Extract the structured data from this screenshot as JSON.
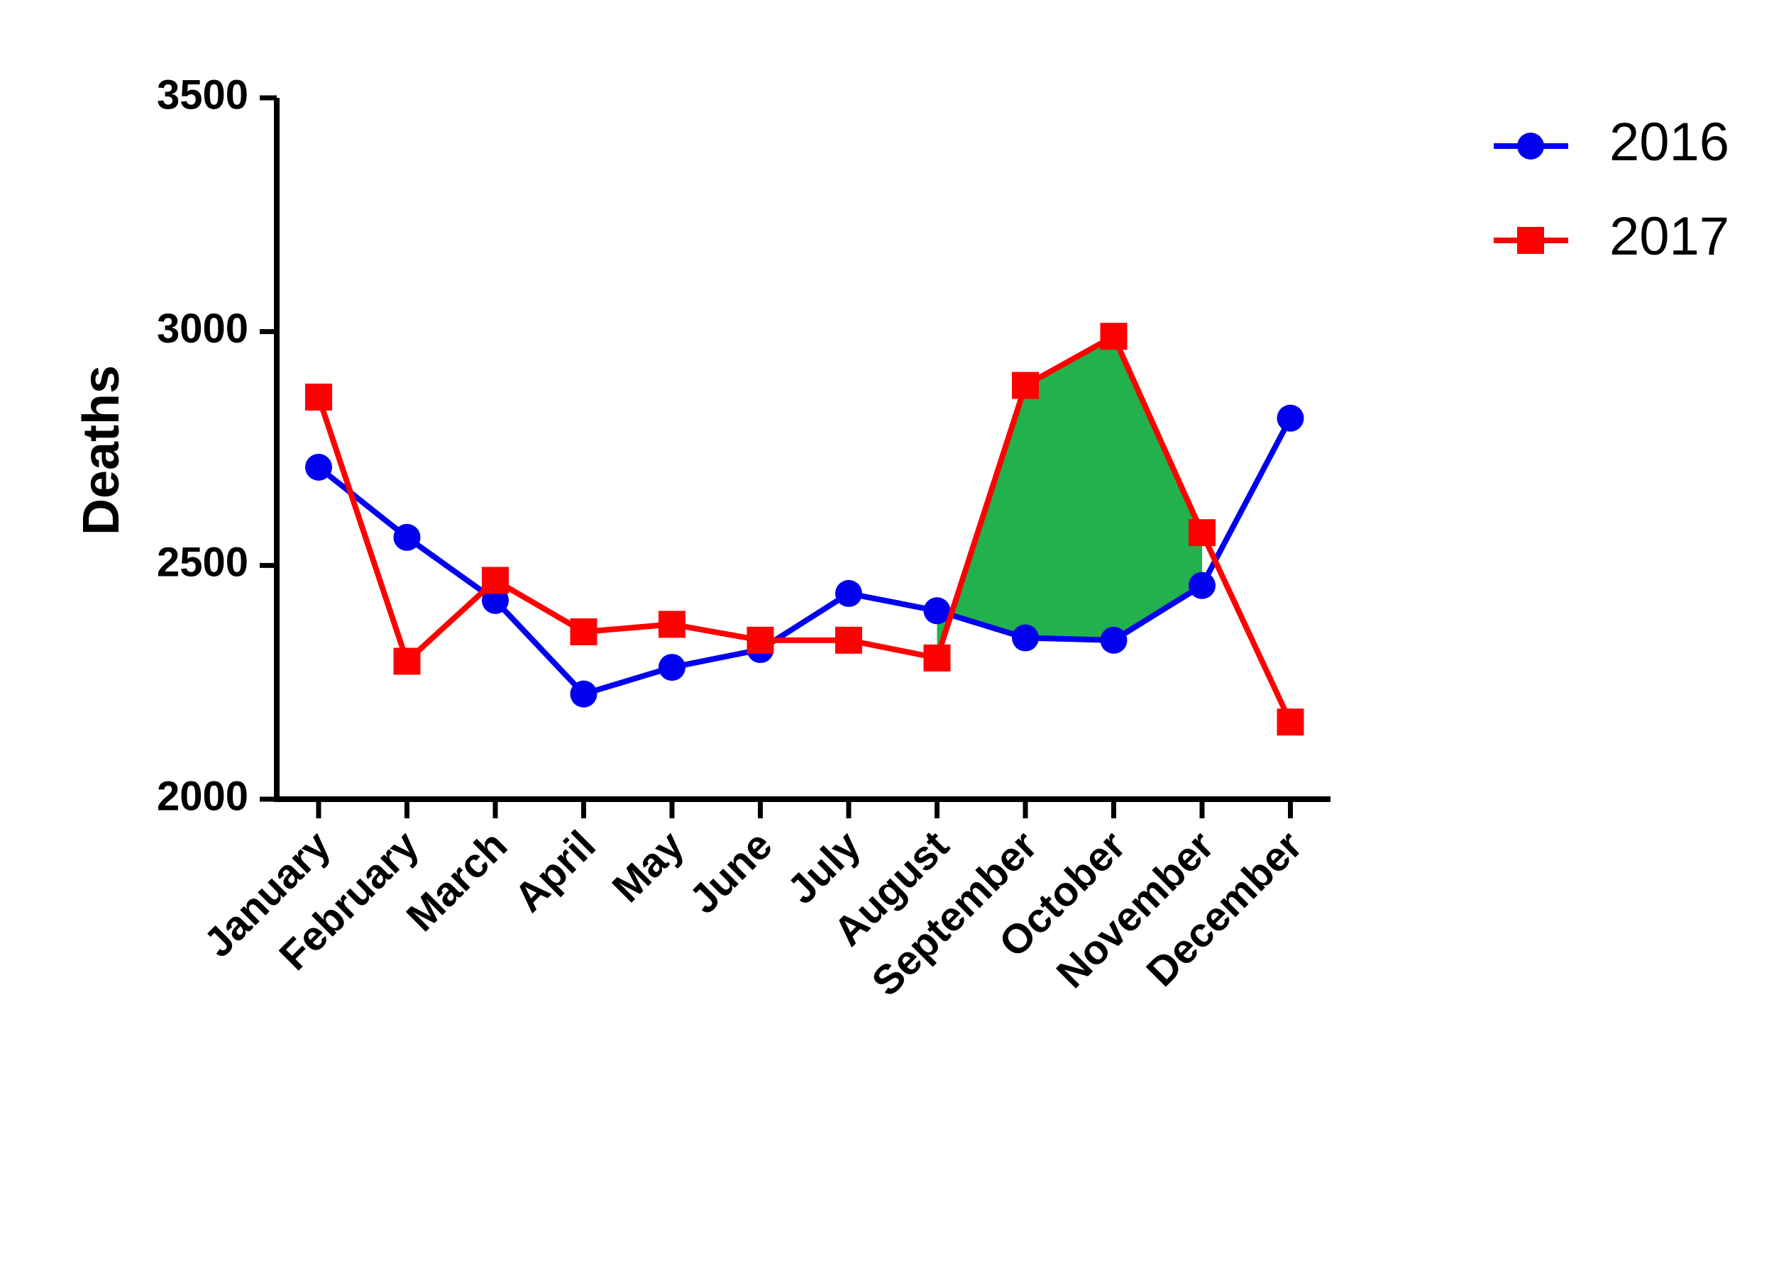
{
  "chart_data": {
    "type": "line",
    "title": "",
    "xlabel": "",
    "ylabel": "Deaths",
    "ylim": [
      2000,
      3500
    ],
    "yticks": [
      2000,
      2500,
      3000,
      3500
    ],
    "categories": [
      "January",
      "February",
      "March",
      "April",
      "May",
      "June",
      "July",
      "August",
      "September",
      "October",
      "November",
      "December"
    ],
    "series": [
      {
        "name": "2016",
        "color": "#0000ee",
        "marker": "circle",
        "values": [
          2710,
          2560,
          2425,
          2225,
          2282,
          2320,
          2440,
          2403,
          2345,
          2340,
          2457,
          2815
        ]
      },
      {
        "name": "2017",
        "color": "#ff0000",
        "marker": "square",
        "values": [
          2860,
          2295,
          2468,
          2358,
          2374,
          2340,
          2340,
          2302,
          2885,
          2990,
          2570,
          2165
        ]
      }
    ],
    "highlight": {
      "color": "#22b14c",
      "between_series": [
        "2017",
        "2016"
      ],
      "from_index": 7,
      "to_index": 10
    },
    "grid": false,
    "legend": {
      "placement": "top-right"
    }
  }
}
